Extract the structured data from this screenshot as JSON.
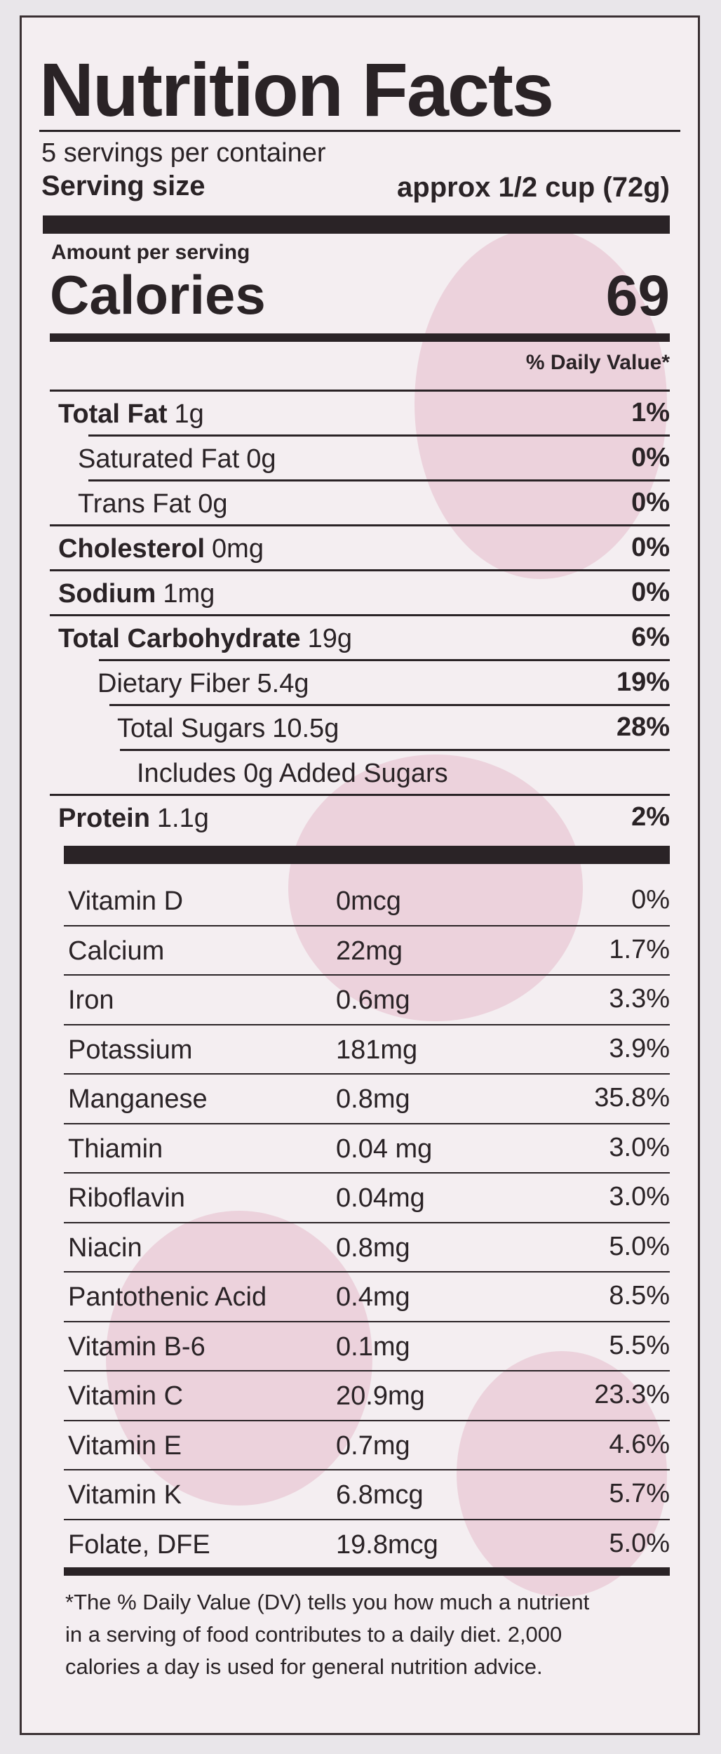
{
  "header": {
    "title": "Nutrition Facts",
    "servings": "5 servings per container",
    "serving_size_label": "Serving size",
    "serving_size_value": "approx 1/2 cup (72g)"
  },
  "calories": {
    "amount_per_serving": "Amount per serving",
    "label": "Calories",
    "value": "69"
  },
  "daily_value_header": "% Daily Value*",
  "nutrients": [
    {
      "name": "Total Fat",
      "amount": "1g",
      "dv": "1%"
    },
    {
      "name": "Saturated Fat",
      "amount": "0g",
      "dv": "0%"
    },
    {
      "name": "Trans Fat",
      "amount": "0g",
      "dv": "0%"
    },
    {
      "name": "Cholesterol",
      "amount": "0mg",
      "dv": "0%"
    },
    {
      "name": "Sodium",
      "amount": "1mg",
      "dv": "0%"
    },
    {
      "name": "Total Carbohydrate",
      "amount": "19g",
      "dv": "6%"
    },
    {
      "name": "Dietary Fiber",
      "amount": "5.4g",
      "dv": "19%"
    },
    {
      "name": "Total Sugars",
      "amount": "10.5g",
      "dv": "28%"
    },
    {
      "name": "Includes 0g Added Sugars"
    },
    {
      "name": "Protein",
      "amount": "1.1g",
      "dv": "2%"
    }
  ],
  "vitamins": [
    {
      "name": "Vitamin D",
      "amount": "0mcg",
      "dv": "0%"
    },
    {
      "name": "Calcium",
      "amount": "22mg",
      "dv": "1.7%"
    },
    {
      "name": "Iron",
      "amount": "0.6mg",
      "dv": "3.3%"
    },
    {
      "name": "Potassium",
      "amount": "181mg",
      "dv": "3.9%"
    },
    {
      "name": "Manganese",
      "amount": "0.8mg",
      "dv": "35.8%"
    },
    {
      "name": "Thiamin",
      "amount": "0.04 mg",
      "dv": "3.0%"
    },
    {
      "name": "Riboflavin",
      "amount": "0.04mg",
      "dv": "3.0%"
    },
    {
      "name": "Niacin",
      "amount": "0.8mg",
      "dv": "5.0%"
    },
    {
      "name": "Pantothenic Acid",
      "amount": "0.4mg",
      "dv": "8.5%"
    },
    {
      "name": "Vitamin B-6",
      "amount": "0.1mg",
      "dv": "5.5%"
    },
    {
      "name": "Vitamin C",
      "amount": "20.9mg",
      "dv": "23.3%"
    },
    {
      "name": "Vitamin E",
      "amount": "0.7mg",
      "dv": "4.6%"
    },
    {
      "name": "Vitamin K",
      "amount": "6.8mcg",
      "dv": "5.7%"
    },
    {
      "name": "Folate, DFE",
      "amount": "19.8mcg",
      "dv": "5.0%"
    }
  ],
  "footnote": [
    "*The % Daily Value (DV) tells you how much a nutrient",
    "in a serving of food contributes to a daily diet. 2,000",
    "calories a day is used for general nutrition advice."
  ]
}
